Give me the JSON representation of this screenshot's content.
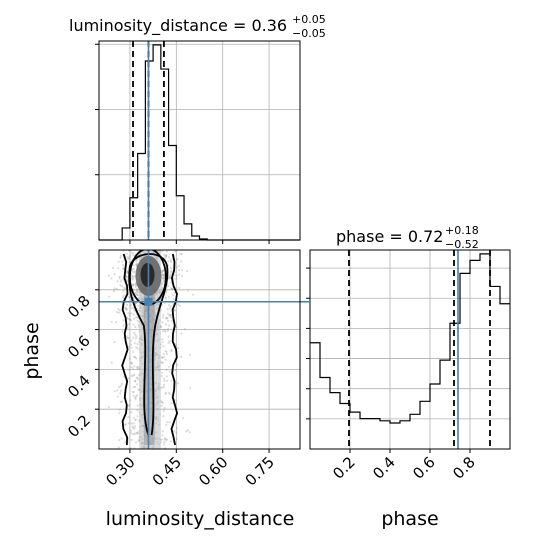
{
  "chart_data": [
    {
      "type": "histogram",
      "panel": "luminosity_distance-marginal",
      "title": {
        "param": "luminosity_distance",
        "median": "0.36",
        "plus": "+0.05",
        "minus": "−0.05"
      },
      "xlim": [
        0.2,
        0.85
      ],
      "xticks": [
        0.3,
        0.45,
        0.6,
        0.75
      ],
      "yticks_count": 3,
      "bins": [
        0.2,
        0.225,
        0.25,
        0.275,
        0.3,
        0.325,
        0.35,
        0.375,
        0.4,
        0.425,
        0.45,
        0.475,
        0.5,
        0.525,
        0.55,
        0.575,
        0.6,
        0.625,
        0.65,
        0.675,
        0.7,
        0.725,
        0.75,
        0.775,
        0.8,
        0.825,
        0.85
      ],
      "counts": [
        0,
        0,
        0,
        0.06,
        0.21,
        0.43,
        0.89,
        0.97,
        0.85,
        0.47,
        0.22,
        0.08,
        0.02,
        0.005,
        0,
        0,
        0,
        0,
        0,
        0,
        0,
        0,
        0,
        0,
        0,
        0
      ],
      "quantiles": [
        0.31,
        0.36,
        0.41
      ],
      "truth": 0.36,
      "grid": true
    },
    {
      "type": "histogram",
      "panel": "phase-marginal",
      "title": {
        "param": "phase",
        "median": "0.72",
        "plus": "+0.18",
        "minus": "−0.52"
      },
      "xlim": [
        0,
        1
      ],
      "xticks": [
        0.2,
        0.4,
        0.6,
        0.8
      ],
      "yticks_count": 6,
      "bins": [
        0.0,
        0.05,
        0.1,
        0.15,
        0.2,
        0.25,
        0.3,
        0.35,
        0.4,
        0.45,
        0.5,
        0.55,
        0.6,
        0.65,
        0.7,
        0.75,
        0.8,
        0.85,
        0.9,
        0.95,
        1.0
      ],
      "counts": [
        0.49,
        0.33,
        0.26,
        0.21,
        0.17,
        0.14,
        0.14,
        0.13,
        0.12,
        0.13,
        0.16,
        0.22,
        0.3,
        0.41,
        0.58,
        0.81,
        0.87,
        0.9,
        0.75,
        0.67
      ],
      "quantiles": [
        0.195,
        0.72,
        0.9
      ],
      "truth": 0.74,
      "grid": true
    },
    {
      "type": "scatter",
      "panel": "joint",
      "xlabel": "luminosity_distance",
      "ylabel": "phase",
      "xlim": [
        0.2,
        0.85
      ],
      "ylim": [
        0,
        1
      ],
      "xticks": [
        0.3,
        0.45,
        0.6,
        0.75
      ],
      "yticks": [
        0.2,
        0.4,
        0.6,
        0.8
      ],
      "truth": {
        "x": 0.36,
        "y": 0.74
      },
      "contour_levels": 3,
      "grid": true
    }
  ]
}
